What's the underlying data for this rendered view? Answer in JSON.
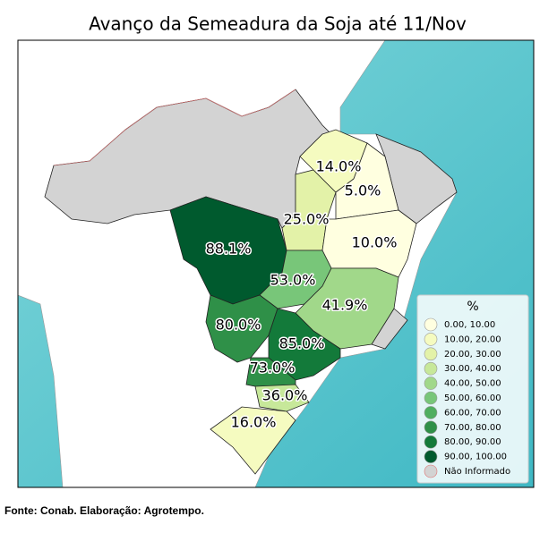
{
  "title": "Avanço da Semeadura da Soja até 11/Nov",
  "region_labels": [
    "14.0%",
    "5.0%",
    "25.0%",
    "10.0%",
    "88.1%",
    "53.0%",
    "41.9%",
    "80.0%",
    "85.0%",
    "73.0%",
    "36.0%",
    "16.0%"
  ],
  "legend": {
    "title": "%",
    "items": [
      {
        "label": "0.00,  10.00",
        "color": "#ffffe0"
      },
      {
        "label": "10.00,  20.00",
        "color": "#f5fbc0"
      },
      {
        "label": "20.00,  30.00",
        "color": "#e3f2a8"
      },
      {
        "label": "30.00,  40.00",
        "color": "#c7e89a"
      },
      {
        "label": "40.00,  50.00",
        "color": "#a1d88a"
      },
      {
        "label": "50.00,  60.00",
        "color": "#78c679"
      },
      {
        "label": "60.00,  70.00",
        "color": "#4fae5f"
      },
      {
        "label": "70.00,  80.00",
        "color": "#2f9048"
      },
      {
        "label": "80.00,  90.00",
        "color": "#137a3a"
      },
      {
        "label": "90.00, 100.00",
        "color": "#005a2e"
      },
      {
        "label": "Não Informado",
        "color": "#d3d3d3"
      }
    ]
  },
  "source": "Fonte: Conab. Elaboração: Agrotempo."
}
